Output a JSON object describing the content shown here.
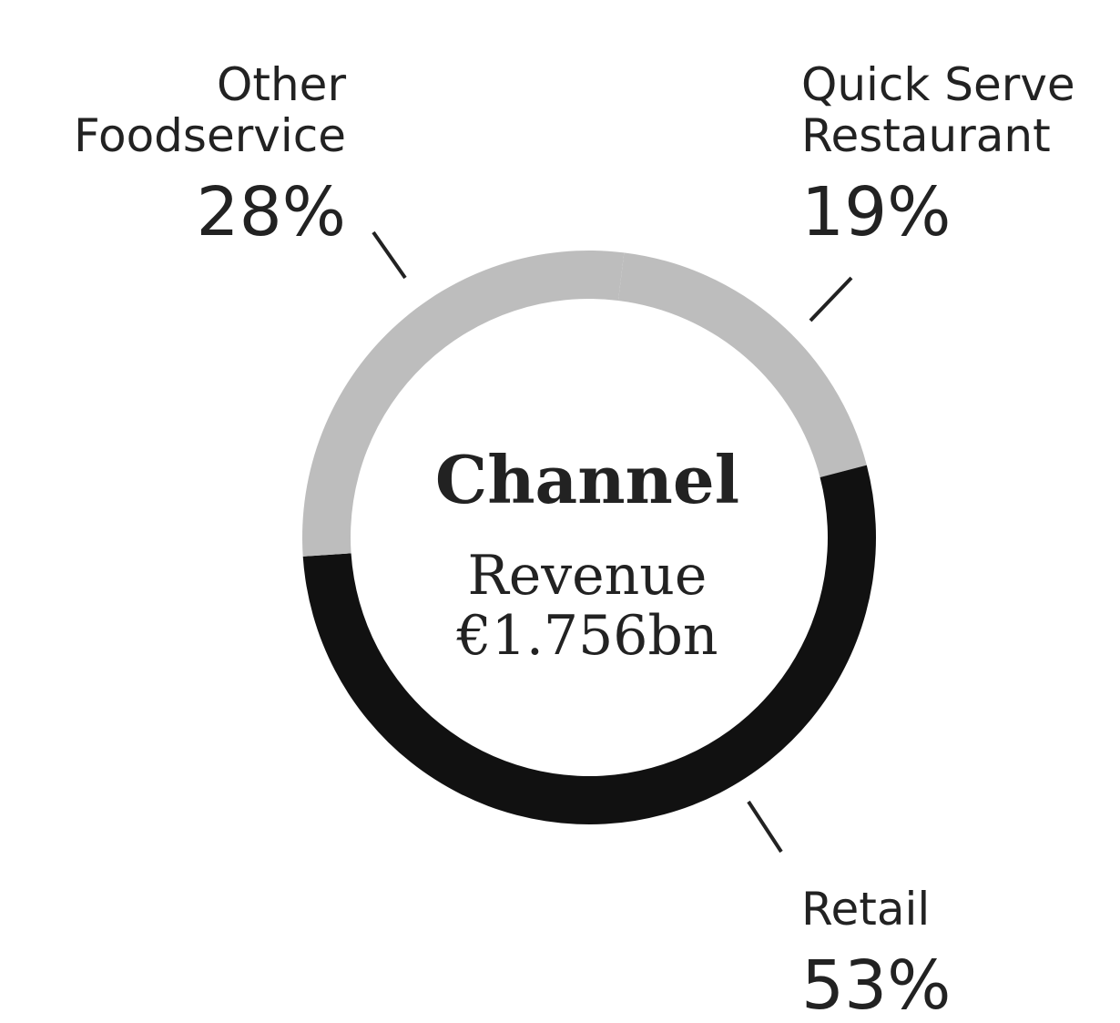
{
  "chart_data": {
    "type": "donut",
    "title": "Channel",
    "subtitle": "Revenue",
    "total_label": "€1.756bn",
    "categories": [
      "Quick Serve\nRestaurant",
      "Retail",
      "Other\nFoodservice"
    ],
    "values": [
      19,
      53,
      28
    ],
    "value_labels": [
      "19%",
      "53%",
      "28%"
    ],
    "colors": [
      "#bdbdbd",
      "#111111",
      "#bdbdbd"
    ]
  }
}
